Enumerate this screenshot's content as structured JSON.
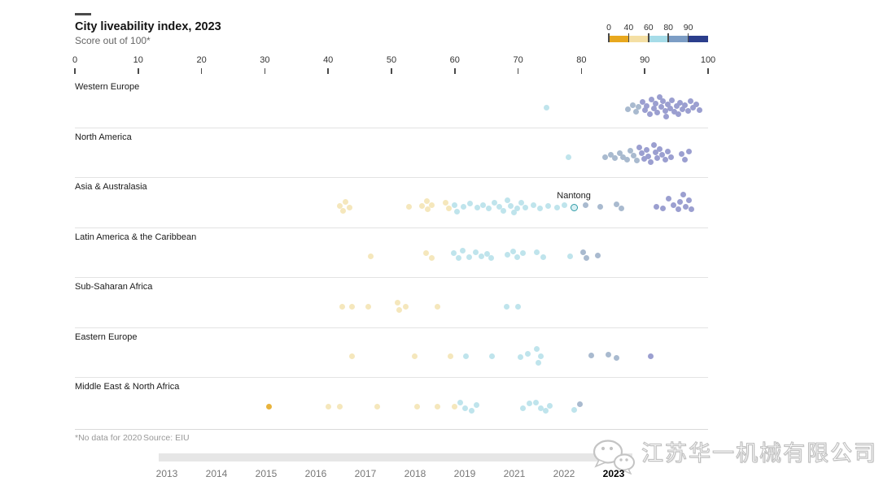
{
  "chart_data": {
    "type": "scatter",
    "title": "City liveability index, 2023",
    "subtitle": "Score out of 100*",
    "footnote": "*No data for 2020",
    "source": "Source: EIU",
    "xlabel": "",
    "ylabel": "",
    "xlim": [
      0,
      100
    ],
    "grid": false,
    "x_ticks": [
      0,
      10,
      20,
      30,
      40,
      50,
      60,
      70,
      80,
      90,
      100
    ],
    "legend": {
      "position": "top-right",
      "tick_labels": [
        "0",
        "40",
        "60",
        "80",
        "90"
      ],
      "segment_ranges": [
        "0-40",
        "40-60",
        "60-80",
        "80-90",
        "90-100"
      ],
      "segment_colors": [
        "#E8A81E",
        "#F4DFA4",
        "#A6DCE8",
        "#7C9DC5",
        "#2B3E8C"
      ]
    },
    "dot_colors": [
      "#E8B33C",
      "#F5E7BC",
      "#BFE4EC",
      "#A9BACF",
      "#9B9FD0"
    ],
    "highlight": {
      "label": "Nantong",
      "region": "Asia & Australasia",
      "score": 78.8,
      "dy": 1
    },
    "regions": [
      {
        "name": "Western Europe",
        "dots": [
          [
            74.5,
            1,
            2
          ],
          [
            87.3,
            3,
            3
          ],
          [
            88.1,
            -2,
            3
          ],
          [
            88.6,
            6,
            3
          ],
          [
            89.0,
            0,
            3
          ],
          [
            89.6,
            -6,
            4
          ],
          [
            90.0,
            4,
            4
          ],
          [
            90.3,
            -1,
            4
          ],
          [
            90.8,
            9,
            4
          ],
          [
            91.1,
            -9,
            4
          ],
          [
            91.4,
            2,
            4
          ],
          [
            91.7,
            -4,
            4
          ],
          [
            92.0,
            7,
            4
          ],
          [
            92.3,
            -12,
            4
          ],
          [
            92.6,
            0,
            4
          ],
          [
            92.9,
            -7,
            4
          ],
          [
            93.2,
            5,
            4
          ],
          [
            93.4,
            12,
            4
          ],
          [
            93.7,
            -3,
            4
          ],
          [
            94.0,
            2,
            4
          ],
          [
            94.3,
            -8,
            4
          ],
          [
            94.7,
            6,
            4
          ],
          [
            95.0,
            -1,
            4
          ],
          [
            95.3,
            9,
            4
          ],
          [
            95.6,
            -5,
            4
          ],
          [
            96.0,
            3,
            4
          ],
          [
            96.4,
            -2,
            4
          ],
          [
            96.8,
            5,
            4
          ],
          [
            97.2,
            -7,
            4
          ],
          [
            97.6,
            1,
            4
          ],
          [
            98.2,
            -3,
            4
          ],
          [
            98.6,
            4,
            4
          ]
        ]
      },
      {
        "name": "North America",
        "dots": [
          [
            78.0,
            1,
            2
          ],
          [
            83.8,
            1,
            3
          ],
          [
            84.6,
            -2,
            3
          ],
          [
            85.3,
            2,
            3
          ],
          [
            86.0,
            -4,
            3
          ],
          [
            86.6,
            1,
            3
          ],
          [
            87.2,
            4,
            3
          ],
          [
            87.7,
            -7,
            3
          ],
          [
            88.2,
            -1,
            3
          ],
          [
            88.7,
            5,
            3
          ],
          [
            89.2,
            -11,
            4
          ],
          [
            89.5,
            -4,
            4
          ],
          [
            89.9,
            3,
            4
          ],
          [
            90.3,
            -8,
            4
          ],
          [
            90.6,
            0,
            4
          ],
          [
            90.9,
            7,
            4
          ],
          [
            91.4,
            -14,
            4
          ],
          [
            91.7,
            -5,
            4
          ],
          [
            92.0,
            2,
            4
          ],
          [
            92.4,
            -9,
            4
          ],
          [
            92.8,
            -2,
            4
          ],
          [
            93.2,
            4,
            4
          ],
          [
            93.7,
            -6,
            4
          ],
          [
            94.1,
            1,
            4
          ],
          [
            95.8,
            -3,
            4
          ],
          [
            96.4,
            4,
            4
          ],
          [
            97.0,
            -6,
            4
          ]
        ]
      },
      {
        "name": "Asia & Australasia",
        "dots": [
          [
            41.9,
            -1,
            1
          ],
          [
            42.8,
            -6,
            1
          ],
          [
            43.4,
            1,
            1
          ],
          [
            42.4,
            5,
            1
          ],
          [
            52.8,
            0,
            1
          ],
          [
            54.8,
            -1,
            1
          ],
          [
            55.6,
            -7,
            1
          ],
          [
            55.7,
            3,
            1
          ],
          [
            56.3,
            -2,
            1
          ],
          [
            58.6,
            -5,
            1
          ],
          [
            59.1,
            2,
            1
          ],
          [
            59.9,
            -2,
            2
          ],
          [
            60.4,
            6,
            2
          ],
          [
            61.4,
            0,
            2
          ],
          [
            62.4,
            -4,
            2
          ],
          [
            63.5,
            1,
            2
          ],
          [
            64.4,
            -2,
            2
          ],
          [
            65.3,
            2,
            2
          ],
          [
            66.2,
            -5,
            2
          ],
          [
            67.0,
            0,
            2
          ],
          [
            67.7,
            5,
            2
          ],
          [
            68.3,
            -8,
            2
          ],
          [
            68.8,
            -1,
            2
          ],
          [
            69.3,
            7,
            2
          ],
          [
            69.9,
            2,
            2
          ],
          [
            70.5,
            -5,
            2
          ],
          [
            71.2,
            1,
            2
          ],
          [
            72.4,
            -2,
            2
          ],
          [
            73.5,
            2,
            2
          ],
          [
            74.8,
            -1,
            2
          ],
          [
            76.2,
            1,
            2
          ],
          [
            77.3,
            -2,
            2
          ],
          [
            80.7,
            -2,
            3
          ],
          [
            83.0,
            0,
            3
          ],
          [
            85.6,
            -3,
            3
          ],
          [
            86.3,
            2,
            3
          ],
          [
            91.9,
            0,
            4
          ],
          [
            92.9,
            2,
            4
          ],
          [
            93.8,
            -10,
            4
          ],
          [
            94.5,
            -2,
            4
          ],
          [
            95.3,
            3,
            4
          ],
          [
            95.6,
            -6,
            4
          ],
          [
            96.1,
            -15,
            4
          ],
          [
            96.5,
            0,
            4
          ],
          [
            97.0,
            -8,
            4
          ],
          [
            97.4,
            3,
            4
          ]
        ]
      },
      {
        "name": "Latin America & the Caribbean",
        "dots": [
          [
            46.7,
            0,
            1
          ],
          [
            55.5,
            -4,
            1
          ],
          [
            56.3,
            2,
            1
          ],
          [
            59.8,
            -4,
            2
          ],
          [
            60.6,
            2,
            2
          ],
          [
            61.3,
            -7,
            2
          ],
          [
            62.3,
            1,
            2
          ],
          [
            63.3,
            -5,
            2
          ],
          [
            64.2,
            0,
            2
          ],
          [
            65.1,
            -3,
            2
          ],
          [
            65.7,
            2,
            2
          ],
          [
            68.3,
            -2,
            2
          ],
          [
            69.2,
            -6,
            2
          ],
          [
            69.8,
            1,
            2
          ],
          [
            70.8,
            -4,
            2
          ],
          [
            73.0,
            -5,
            2
          ],
          [
            74.0,
            1,
            2
          ],
          [
            78.2,
            0,
            2
          ],
          [
            80.3,
            -5,
            3
          ],
          [
            80.8,
            2,
            3
          ],
          [
            82.6,
            -1,
            3
          ]
        ]
      },
      {
        "name": "Sub-Saharan Africa",
        "dots": [
          [
            42.2,
            0,
            1
          ],
          [
            43.8,
            0,
            1
          ],
          [
            46.4,
            0,
            1
          ],
          [
            50.9,
            -5,
            1
          ],
          [
            51.2,
            4,
            1
          ],
          [
            52.2,
            0,
            1
          ],
          [
            57.3,
            0,
            1
          ],
          [
            68.2,
            0,
            2
          ],
          [
            70.0,
            0,
            2
          ]
        ]
      },
      {
        "name": "Eastern Europe",
        "dots": [
          [
            43.8,
            0,
            1
          ],
          [
            53.7,
            0,
            1
          ],
          [
            59.3,
            0,
            1
          ],
          [
            61.8,
            0,
            2
          ],
          [
            65.9,
            0,
            2
          ],
          [
            70.4,
            1,
            2
          ],
          [
            71.5,
            -3,
            2
          ],
          [
            73.0,
            -9,
            2
          ],
          [
            73.6,
            0,
            2
          ],
          [
            73.2,
            8,
            2
          ],
          [
            81.6,
            -1,
            3
          ],
          [
            84.3,
            -2,
            3
          ],
          [
            85.5,
            2,
            3
          ],
          [
            91.0,
            0,
            4
          ]
        ]
      },
      {
        "name": "Middle East & North Africa",
        "dots": [
          [
            30.6,
            0,
            0
          ],
          [
            40.0,
            0,
            1
          ],
          [
            41.9,
            0,
            1
          ],
          [
            47.7,
            0,
            1
          ],
          [
            54.0,
            0,
            1
          ],
          [
            57.3,
            0,
            1
          ],
          [
            59.9,
            0,
            1
          ],
          [
            60.8,
            -5,
            2
          ],
          [
            61.6,
            2,
            2
          ],
          [
            62.7,
            5,
            2
          ],
          [
            63.4,
            -2,
            2
          ],
          [
            70.8,
            2,
            2
          ],
          [
            71.8,
            -4,
            2
          ],
          [
            72.8,
            -5,
            2
          ],
          [
            73.6,
            2,
            2
          ],
          [
            74.3,
            5,
            2
          ],
          [
            75.0,
            -1,
            2
          ],
          [
            78.8,
            4,
            2
          ],
          [
            79.8,
            -3,
            3
          ]
        ]
      }
    ],
    "timeline": {
      "years": [
        "2013",
        "2014",
        "2015",
        "2016",
        "2017",
        "2018",
        "2019",
        "2021",
        "2022",
        "2023"
      ],
      "active": "2023"
    },
    "watermark": "江苏华一机械有限公司"
  }
}
